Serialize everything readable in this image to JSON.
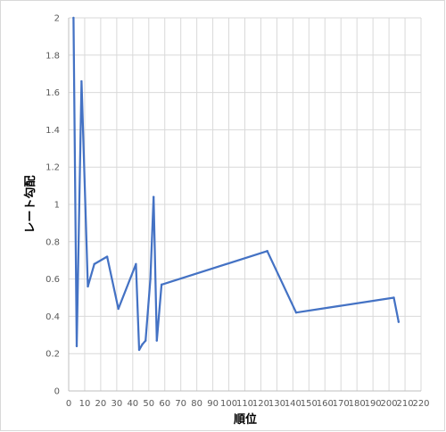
{
  "chart_data": {
    "type": "scatter",
    "mode": "lines",
    "title": "",
    "xlabel": "順位",
    "ylabel": "レート勾配",
    "xlim": [
      0,
      220
    ],
    "ylim": [
      0,
      2
    ],
    "xticks": [
      0,
      10,
      20,
      30,
      40,
      50,
      60,
      70,
      80,
      90,
      100,
      110,
      120,
      130,
      140,
      150,
      160,
      170,
      180,
      190,
      200,
      210,
      220
    ],
    "yticks": [
      0,
      0.2,
      0.4,
      0.6,
      0.8,
      1,
      1.2,
      1.4,
      1.6,
      1.8,
      2
    ],
    "ytick_labels": [
      "0",
      "0.2",
      "0.4",
      "0.6",
      "0.8",
      "1",
      "1.2",
      "1.4",
      "1.6",
      "1.8",
      "2"
    ],
    "grid": true,
    "series": [
      {
        "color": "#4472c4",
        "x": [
          3,
          5,
          8,
          12,
          16,
          24,
          31,
          42,
          44,
          46,
          48,
          51,
          53,
          55,
          58,
          124,
          142,
          203,
          206
        ],
        "y": [
          2.0,
          0.24,
          1.66,
          0.56,
          0.68,
          0.72,
          0.44,
          0.68,
          0.22,
          0.25,
          0.27,
          0.6,
          1.04,
          0.27,
          0.57,
          0.75,
          0.42,
          0.5,
          0.37
        ]
      }
    ]
  }
}
